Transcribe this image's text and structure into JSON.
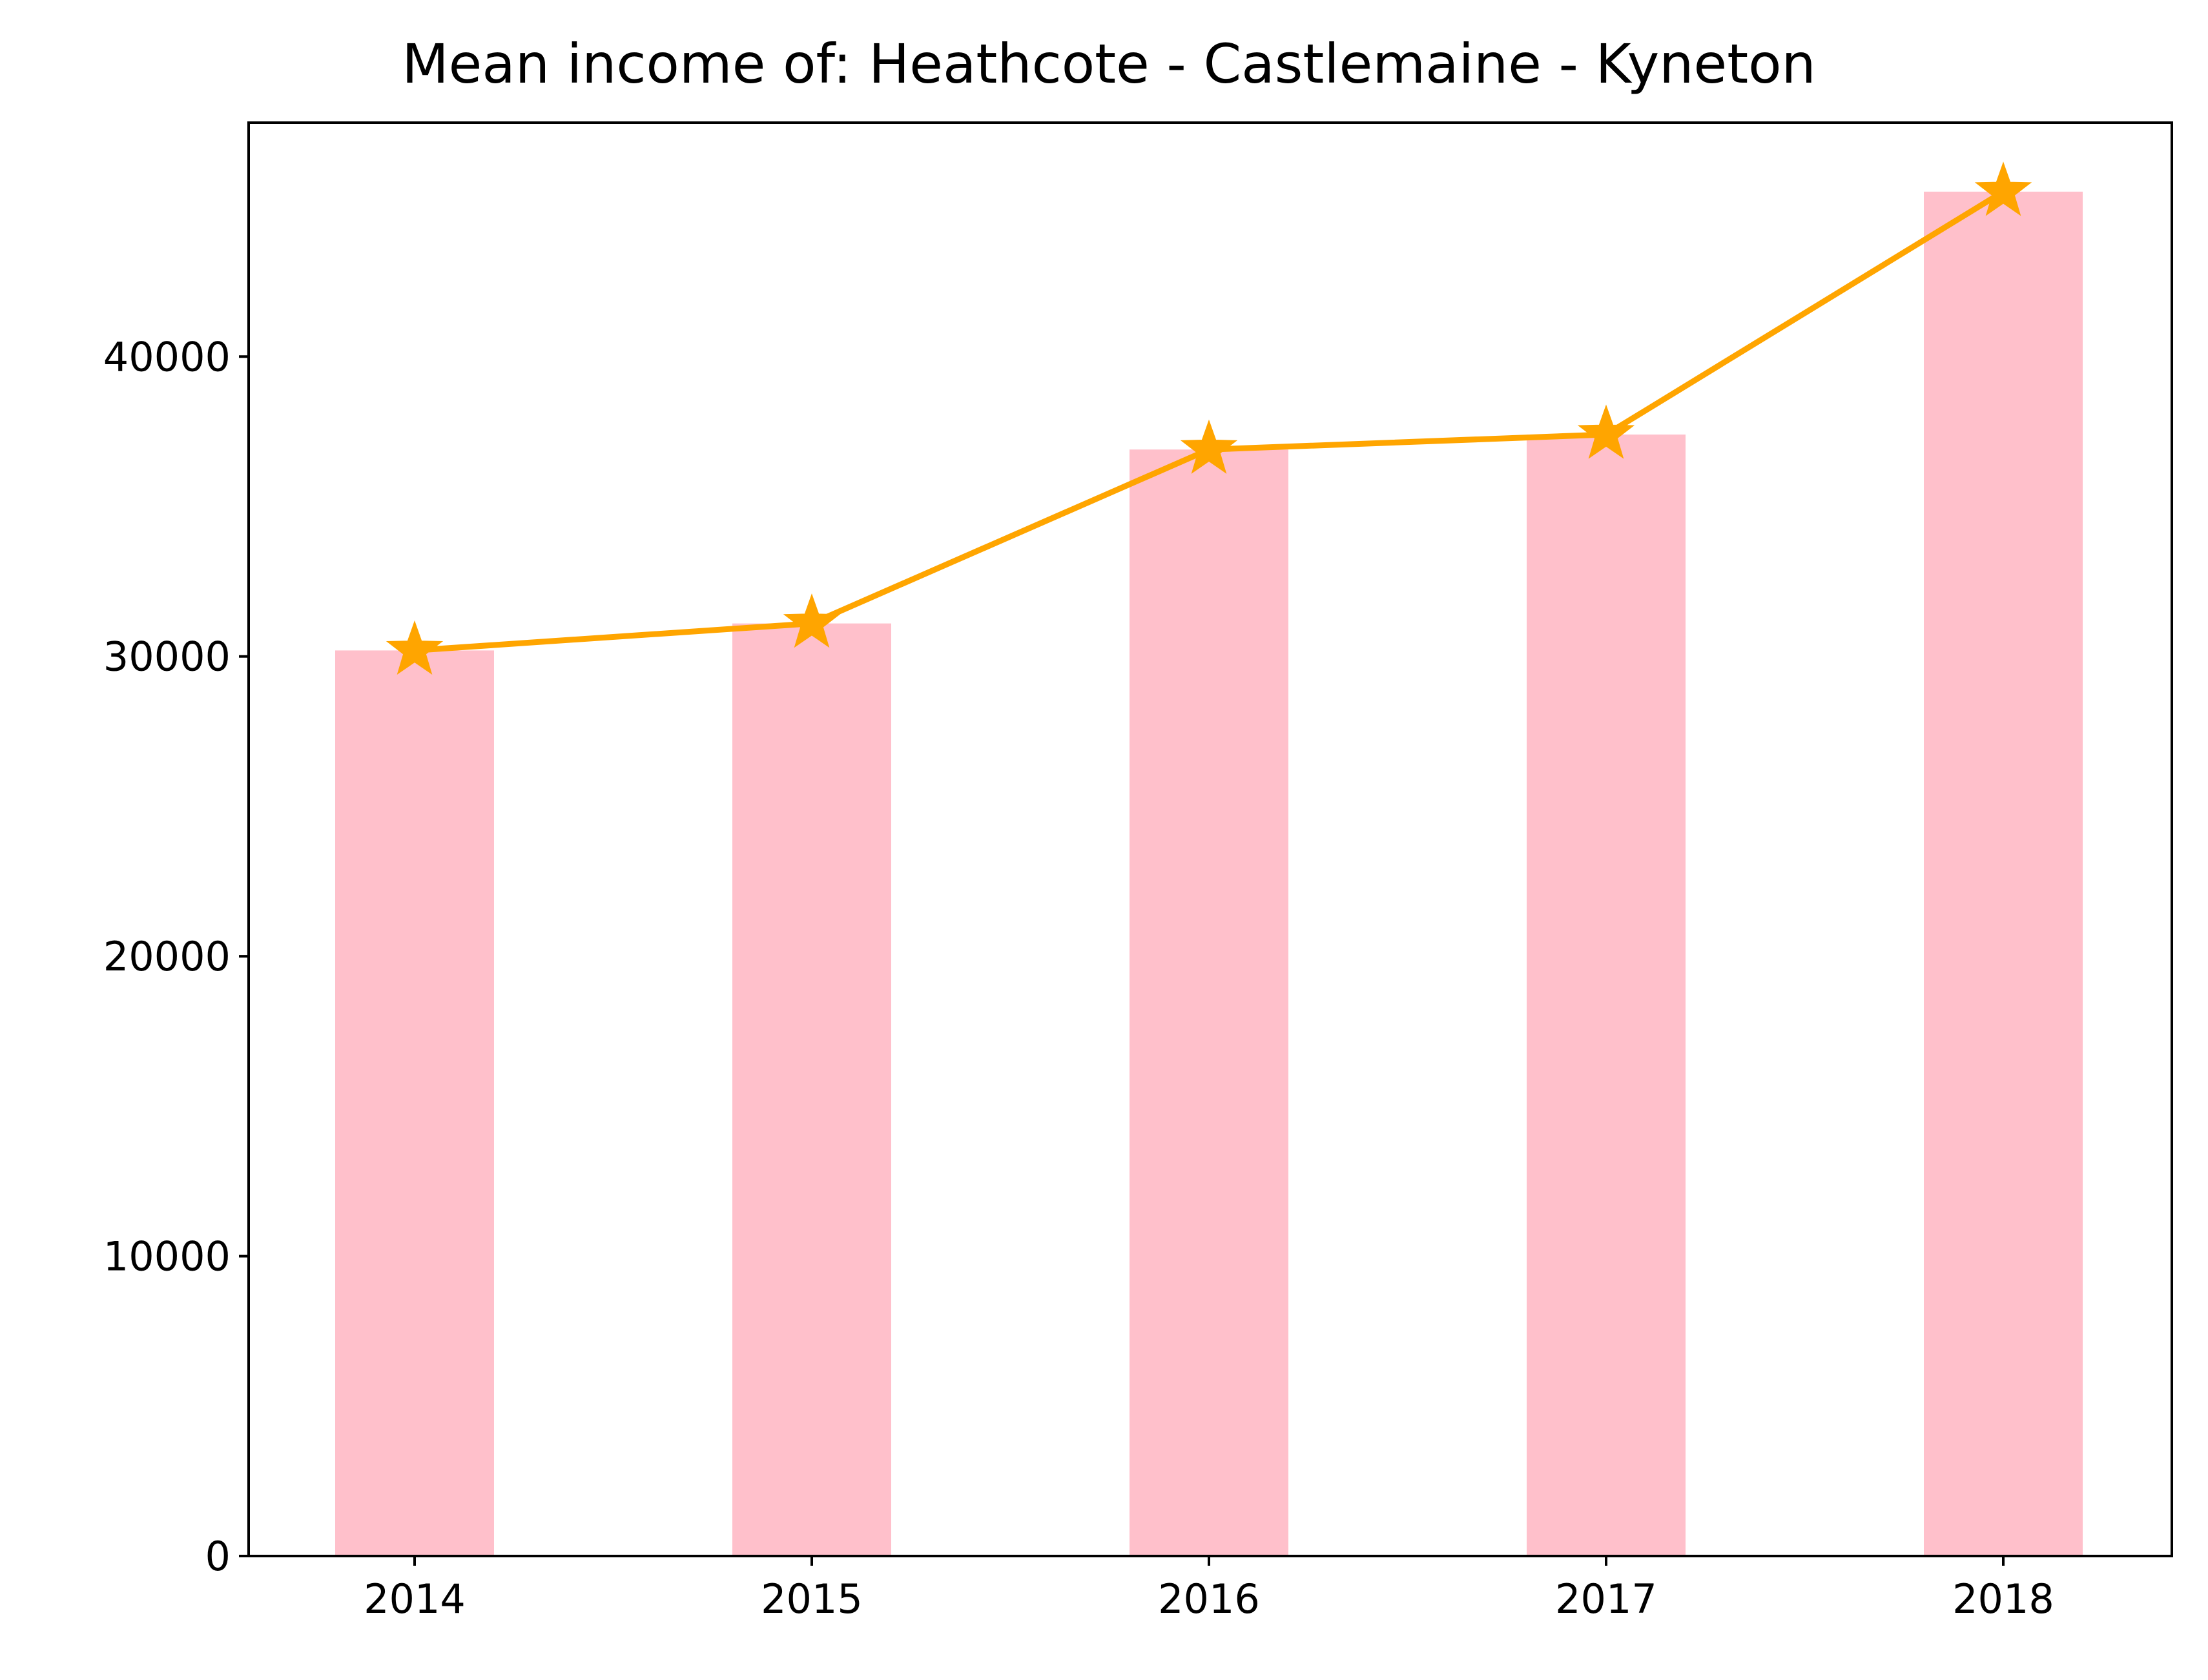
{
  "chart_data": {
    "type": "bar",
    "title": "Mean income of: Heathcote - Castlemaine - Kyneton",
    "xlabel": "",
    "ylabel": "",
    "categories": [
      "2014",
      "2015",
      "2016",
      "2017",
      "2018"
    ],
    "series": [
      {
        "type": "bar",
        "values": [
          30200,
          31100,
          36900,
          37400,
          45500
        ]
      },
      {
        "type": "line",
        "marker": "star",
        "values": [
          30200,
          31100,
          36900,
          37400,
          45500
        ]
      }
    ],
    "ylim": [
      0,
      47800
    ],
    "yticks": [
      0,
      10000,
      20000,
      30000,
      40000
    ],
    "ytick_labels": [
      "0",
      "10000",
      "20000",
      "30000",
      "40000"
    ],
    "grid": false,
    "colors": {
      "bar": "#FFC0CB",
      "line": "#FFA500",
      "axis": "#000000"
    }
  }
}
